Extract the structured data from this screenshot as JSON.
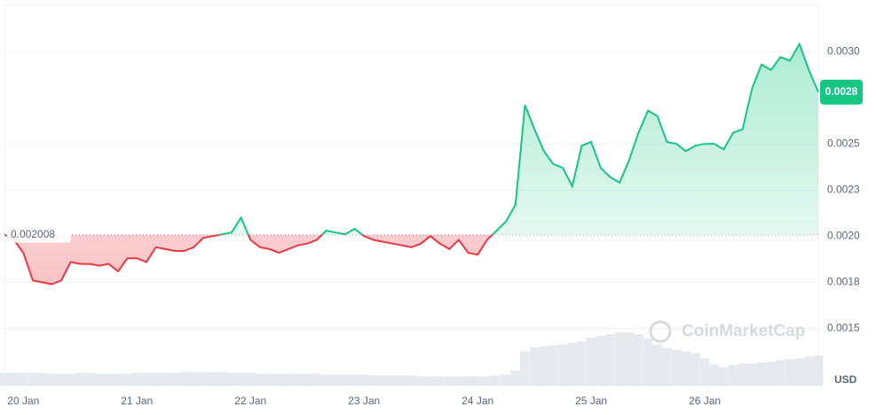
{
  "chart_data": {
    "type": "line",
    "currency": "USD",
    "watermark": "CoinMarketCap",
    "baseline": {
      "value": 0.002008,
      "label": "0.002008"
    },
    "current_price": {
      "value": 0.00278,
      "label": "0.0028"
    },
    "up_color": "#16c784",
    "down_color": "#ea3943",
    "xlim": [
      0,
      86
    ],
    "xticks": [
      {
        "value": 2,
        "label": "20 Jan"
      },
      {
        "value": 14,
        "label": "21 Jan"
      },
      {
        "value": 26,
        "label": "22 Jan"
      },
      {
        "value": 38,
        "label": "23 Jan"
      },
      {
        "value": 50,
        "label": "24 Jan"
      },
      {
        "value": 62,
        "label": "25 Jan"
      },
      {
        "value": 74,
        "label": "26 Jan"
      }
    ],
    "ylim": [
      0.00119,
      0.003255
    ],
    "yticks": [
      0.0015,
      {
        "value": 0.00175,
        "label": "0.0018"
      },
      {
        "value": 0.002,
        "label": "0.0020"
      },
      {
        "value": 0.00225,
        "label": "0.0023"
      },
      0.0025,
      {
        "value": 0.003,
        "label": "0.0030"
      }
    ],
    "grid": true,
    "values": [
      0.00201,
      0.00198,
      0.00191,
      0.00176,
      0.00175,
      0.00174,
      0.00176,
      0.00186,
      0.00185,
      0.00185,
      0.00184,
      0.00185,
      0.00181,
      0.00188,
      0.00188,
      0.00186,
      0.00194,
      0.00193,
      0.00192,
      0.00192,
      0.00194,
      0.00199,
      0.002,
      0.00201,
      0.00202,
      0.0021,
      0.00198,
      0.00194,
      0.00193,
      0.00191,
      0.00193,
      0.00195,
      0.00196,
      0.00198,
      0.00203,
      0.00202,
      0.00201,
      0.00204,
      0.002,
      0.00198,
      0.00197,
      0.00196,
      0.00195,
      0.00194,
      0.00196,
      0.002,
      0.00196,
      0.00193,
      0.00198,
      0.00191,
      0.0019,
      0.00198,
      0.00203,
      0.00208,
      0.00217,
      0.00271,
      0.00258,
      0.00246,
      0.00239,
      0.00237,
      0.00227,
      0.00249,
      0.00251,
      0.00237,
      0.00232,
      0.00229,
      0.00241,
      0.00256,
      0.00268,
      0.00265,
      0.00251,
      0.0025,
      0.00246,
      0.00249,
      0.0025,
      0.0025,
      0.00247,
      0.00256,
      0.00258,
      0.0028,
      0.00293,
      0.0029,
      0.00297,
      0.00295,
      0.00304,
      0.0029,
      0.00278
    ],
    "volume": [
      15,
      15,
      15,
      15,
      15,
      14,
      14,
      14,
      15,
      15,
      14,
      14,
      14,
      14,
      15,
      15,
      15,
      15,
      15,
      16,
      16,
      16,
      16,
      16,
      15,
      15,
      15,
      14,
      14,
      14,
      14,
      14,
      14,
      14,
      13,
      13,
      13,
      13,
      13,
      12,
      12,
      12,
      12,
      12,
      11,
      11,
      11,
      11,
      11,
      11,
      11,
      11,
      12,
      13,
      18,
      40,
      45,
      46,
      47,
      48,
      50,
      52,
      56,
      58,
      60,
      62,
      62,
      60,
      55,
      48,
      44,
      42,
      40,
      38,
      32,
      25,
      22,
      24,
      26,
      26,
      27,
      28,
      30,
      31,
      32,
      34,
      35
    ]
  }
}
